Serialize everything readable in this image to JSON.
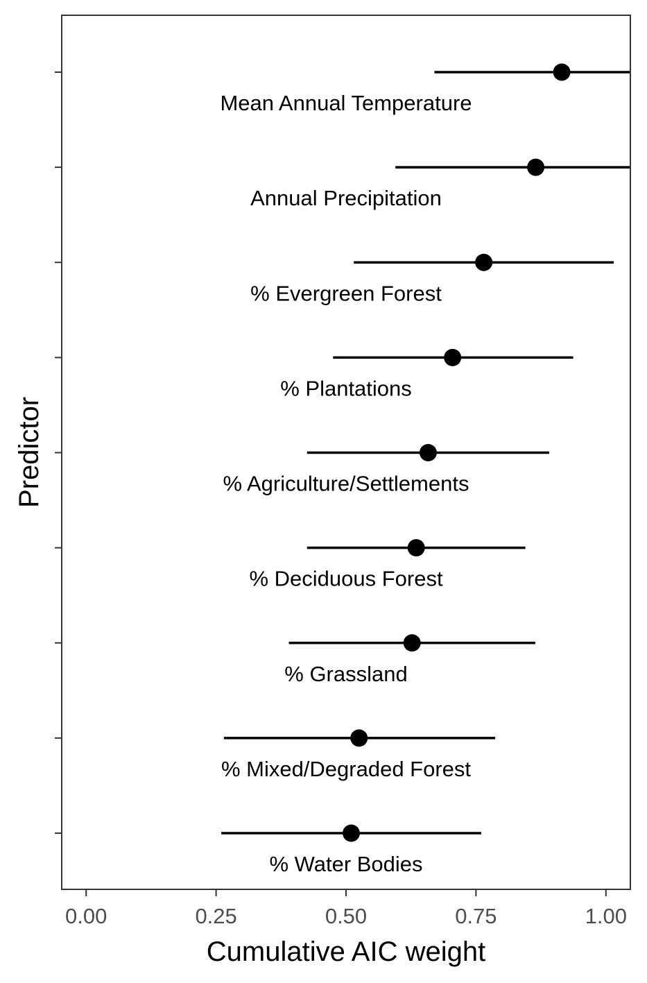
{
  "chart_data": {
    "type": "scatter",
    "xlabel": "Cumulative AIC weight",
    "ylabel": "Predictor",
    "xlim": [
      -0.047,
      1.047
    ],
    "x_ticks": [
      0.0,
      0.25,
      0.5,
      0.75,
      1.0
    ],
    "x_tick_labels": [
      "0.00",
      "0.25",
      "0.50",
      "0.75",
      "1.00"
    ],
    "grid": false,
    "legend": "none",
    "points": [
      {
        "label": "Mean Annual Temperature",
        "value": 0.915,
        "lower": 0.67,
        "upper": 1.047
      },
      {
        "label": "Annual Precipitation",
        "value": 0.865,
        "lower": 0.595,
        "upper": 1.047
      },
      {
        "label": "% Evergreen Forest",
        "value": 0.765,
        "lower": 0.515,
        "upper": 1.015
      },
      {
        "label": "% Plantations",
        "value": 0.705,
        "lower": 0.475,
        "upper": 0.937
      },
      {
        "label": "% Agriculture/Settlements",
        "value": 0.658,
        "lower": 0.425,
        "upper": 0.891
      },
      {
        "label": "% Deciduous Forest",
        "value": 0.635,
        "lower": 0.425,
        "upper": 0.845
      },
      {
        "label": "% Grassland",
        "value": 0.627,
        "lower": 0.39,
        "upper": 0.864
      },
      {
        "label": "% Mixed/Degraded Forest",
        "value": 0.525,
        "lower": 0.265,
        "upper": 0.787
      },
      {
        "label": "% Water Bodies",
        "value": 0.51,
        "lower": 0.26,
        "upper": 0.76
      }
    ],
    "colors": {
      "point": "#000000",
      "errorbar": "#000000",
      "panel_border": "#333333",
      "tick": "#333333",
      "tick_label": "#4d4d4d"
    }
  }
}
